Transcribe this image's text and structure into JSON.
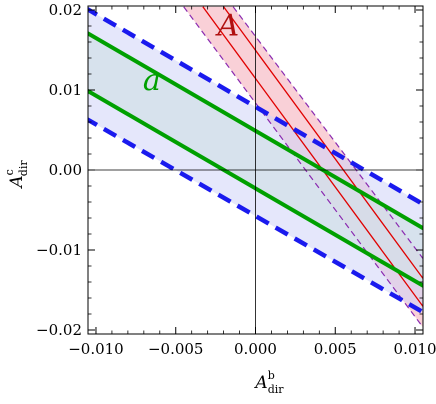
{
  "chart_data": {
    "type": "area",
    "title": "",
    "xlabel": {
      "base": "A",
      "sup": "b",
      "sub": "dir"
    },
    "ylabel": {
      "base": "A",
      "sup": "c",
      "sub": "dir"
    },
    "xlim": [
      -0.0105,
      0.0105
    ],
    "ylim": [
      -0.0205,
      0.0205
    ],
    "x_ticks": [
      -0.01,
      -0.005,
      0.0,
      0.005,
      0.01
    ],
    "x_tick_labels": [
      "−0.010",
      "−0.005",
      "0.000",
      "0.005",
      "0.010"
    ],
    "y_ticks": [
      -0.02,
      -0.01,
      0.0,
      0.01,
      0.02
    ],
    "y_tick_labels": [
      "−0.02",
      "−0.01",
      "0.00",
      "0.01",
      "0.02"
    ],
    "grid": false,
    "bands": [
      {
        "label": "A",
        "color": "#e00000",
        "fill": "#f8c8d0",
        "outer_dashed_color": "#8a2ab0",
        "outer_lines": [
          {
            "points": [
              [
                -0.0045,
                0.0204
              ],
              [
                0.0107,
                -0.0202
              ]
            ]
          },
          {
            "points": [
              [
                -0.0014,
                0.0204
              ],
              [
                0.0107,
                -0.0116
              ]
            ]
          }
        ],
        "inner_lines": [
          {
            "points": [
              [
                -0.0033,
                0.0204
              ],
              [
                0.0107,
                -0.0176
              ]
            ]
          },
          {
            "points": [
              [
                -0.002,
                0.0204
              ],
              [
                0.0107,
                -0.0141
              ]
            ]
          }
        ]
      },
      {
        "label": "a",
        "color": "#00a000",
        "fill": "#d4f0d4",
        "lines": [
          {
            "points": [
              [
                -0.0107,
                0.0173
              ],
              [
                0.0107,
                -0.0075
              ]
            ]
          },
          {
            "points": [
              [
                -0.0107,
                0.0101
              ],
              [
                0.0107,
                -0.0147
              ]
            ]
          }
        ]
      },
      {
        "label": "",
        "color": "#1a1aee",
        "fill": "#d0d4f8",
        "lines": [
          {
            "points": [
              [
                -0.0107,
                0.0203
              ],
              [
                0.0107,
                -0.0045
              ]
            ]
          },
          {
            "points": [
              [
                -0.0107,
                0.0065
              ],
              [
                0.0107,
                -0.018
              ]
            ]
          }
        ]
      }
    ],
    "annotations": [
      {
        "text": "A",
        "x": -0.0017,
        "y": 0.0168,
        "color": "#b01010"
      },
      {
        "text": "a",
        "x": -0.0065,
        "y": 0.01,
        "color": "#00a000"
      }
    ]
  }
}
